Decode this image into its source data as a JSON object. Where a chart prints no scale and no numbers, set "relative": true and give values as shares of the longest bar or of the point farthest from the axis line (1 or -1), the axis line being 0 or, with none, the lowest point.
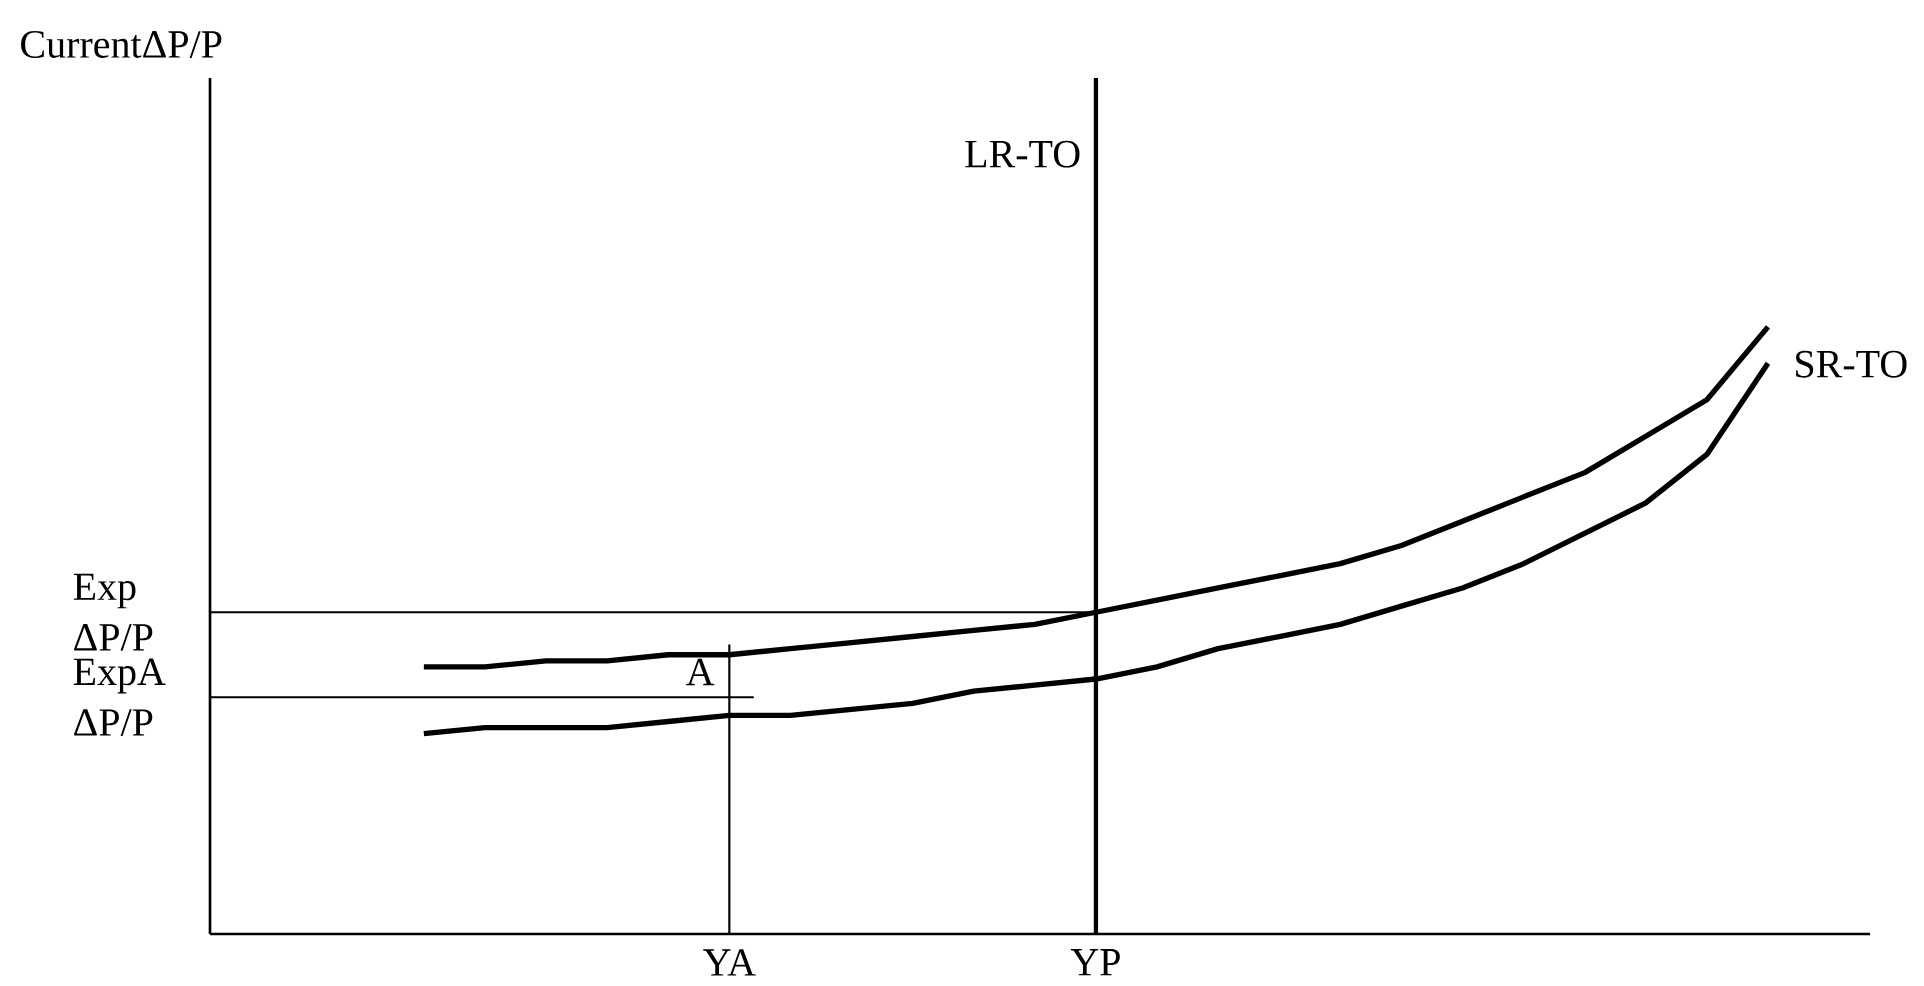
{
  "chart_data": {
    "type": "line",
    "relative": true,
    "tick_labels": "x",
    "categories": [
      null,
      null,
      null,
      null,
      null,
      "YA",
      null,
      null,
      null,
      null,
      null,
      "YP",
      null,
      null,
      null,
      null,
      null,
      null,
      null,
      null,
      null,
      null,
      null
    ],
    "marker": "none",
    "line_style": "solid",
    "series": [
      {
        "name": "SR-TO",
        "color": "#000000",
        "values": [
          0.44,
          0.44,
          0.45,
          0.45,
          0.46,
          0.46,
          0.47,
          0.48,
          0.49,
          0.5,
          0.51,
          0.53,
          0.55,
          0.57,
          0.59,
          0.61,
          0.64,
          0.68,
          0.72,
          0.76,
          0.82,
          0.88,
          1
        ]
      },
      {
        "color": "#000000",
        "values": [
          0.33,
          0.34,
          0.34,
          0.34,
          0.35,
          0.36,
          0.36,
          0.37,
          0.38,
          0.4,
          0.41,
          0.42,
          0.44,
          0.47,
          0.49,
          0.51,
          0.54,
          0.57,
          0.61,
          0.66,
          0.71,
          0.79,
          0.94
        ]
      }
    ],
    "ref_lines": [
      {
        "axis": "x",
        "value": "YP",
        "label": "LR-TO",
        "color": "#000000"
      },
      {
        "axis": "x",
        "value": "YA",
        "color": "#000000"
      },
      {
        "axis": "y",
        "value": 0.53,
        "label": "Exp ΔP/P",
        "color": "#000000"
      },
      {
        "axis": "y",
        "value": 0.39,
        "label": "ExpA ΔP/P",
        "color": "#000000"
      }
    ],
    "annotations": [
      {
        "text": "A",
        "x": "YA",
        "y": 0.39
      },
      "CurrentΔP/P"
    ]
  }
}
